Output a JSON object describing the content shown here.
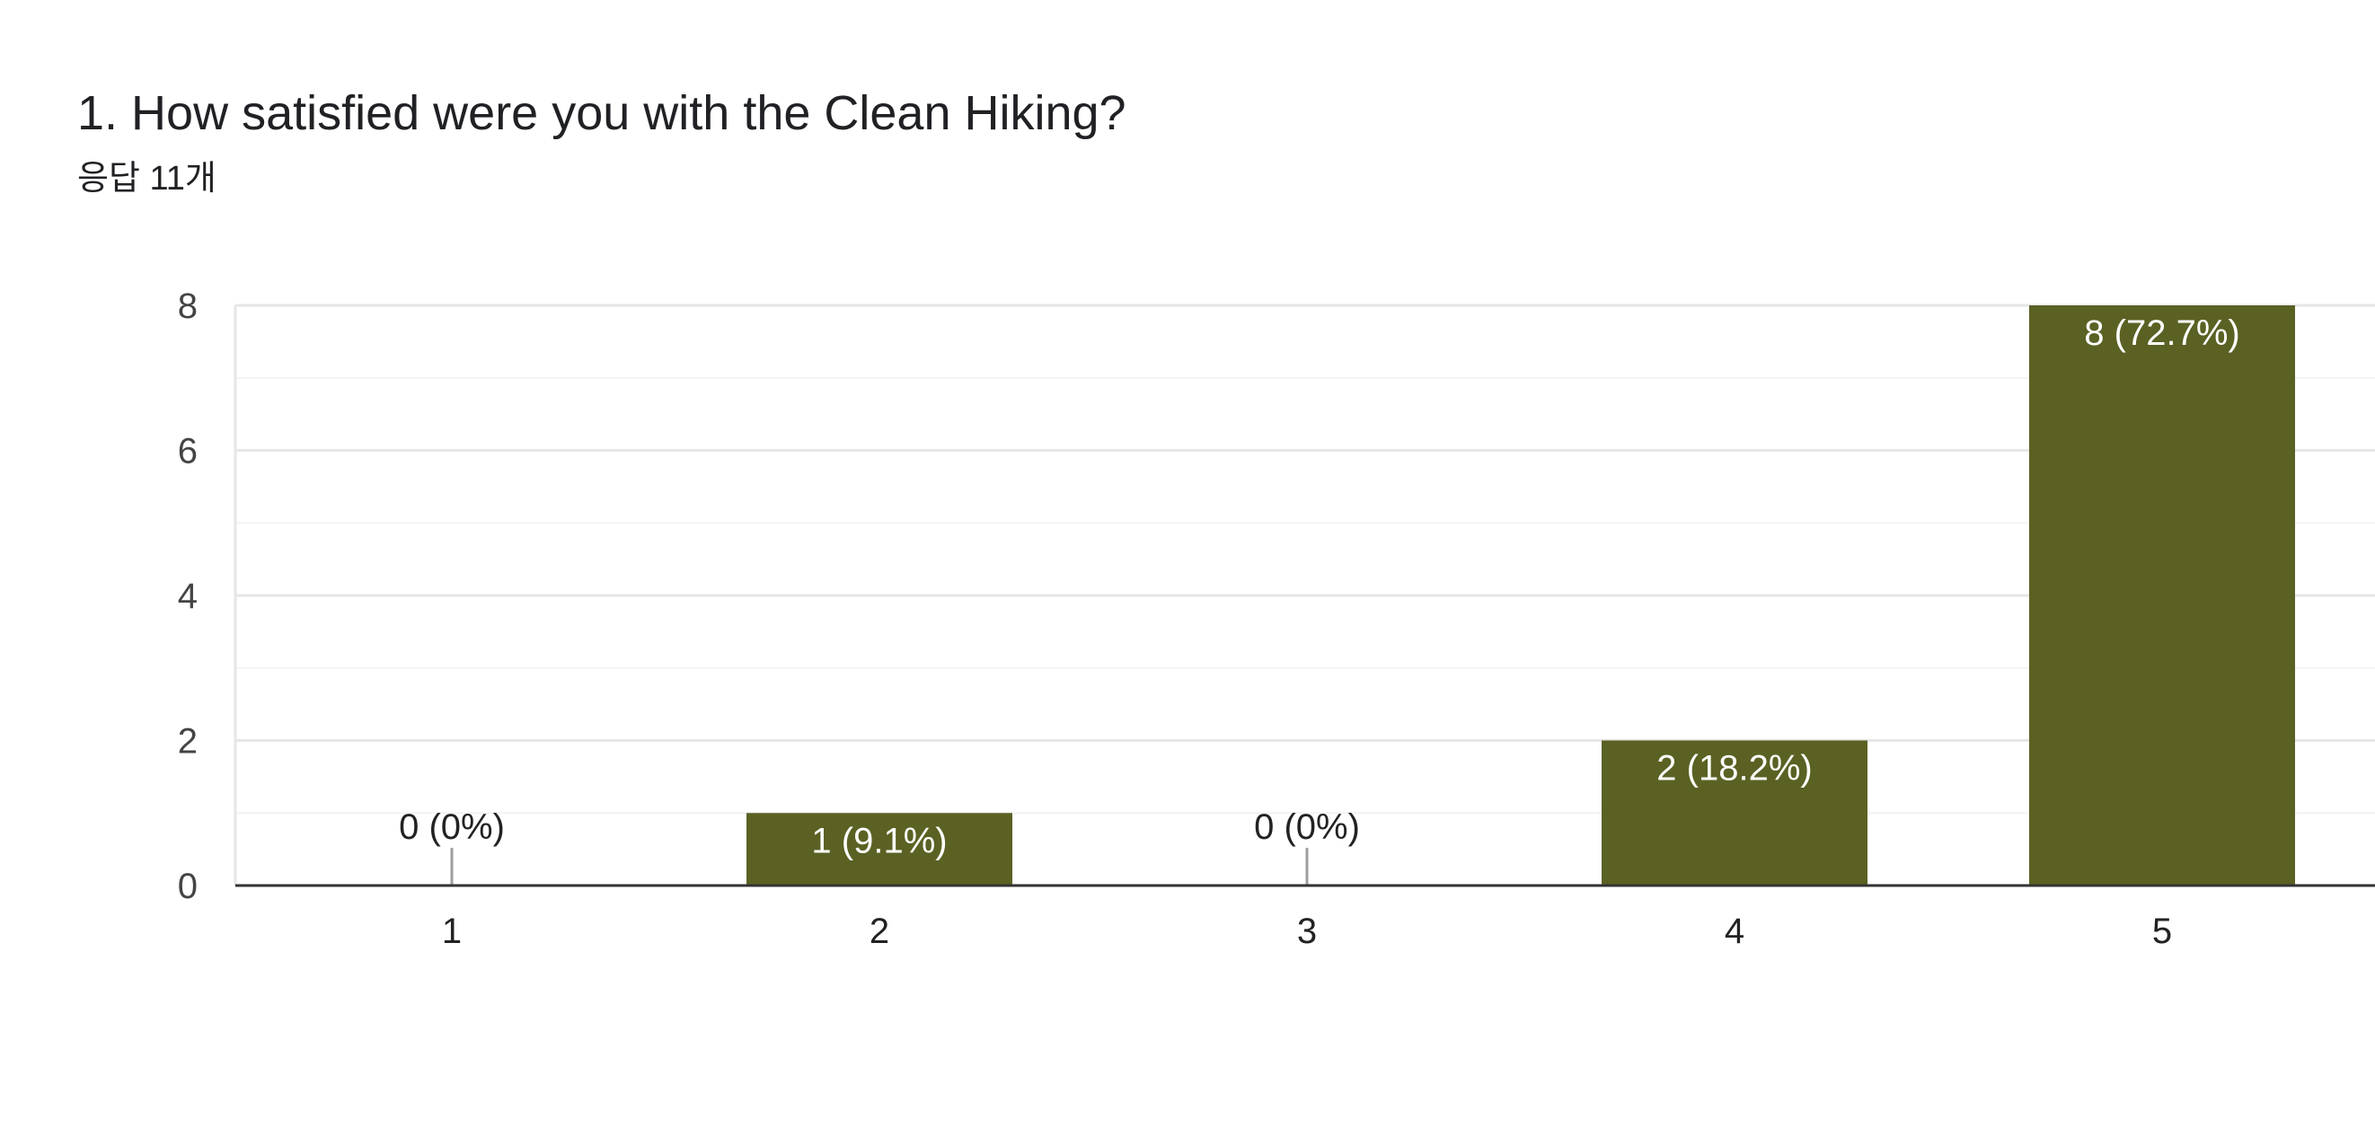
{
  "question": {
    "title": "1. How satisfied were you with the Clean Hiking?",
    "response_count": "응답 11개"
  },
  "colors": {
    "bar": "#5b6123",
    "grid_major": "#e6e6e6",
    "grid_minor": "#f3f3f3",
    "axis": "#333333",
    "zero_stub": "#9e9e9e"
  },
  "chart_data": {
    "type": "bar",
    "categories": [
      "1",
      "2",
      "3",
      "4",
      "5"
    ],
    "values": [
      0,
      1,
      0,
      2,
      8
    ],
    "data_labels": [
      "0 (0%)",
      "1 (9.1%)",
      "0 (0%)",
      "2 (18.2%)",
      "8 (72.7%)"
    ],
    "yticks": [
      "0",
      "2",
      "4",
      "6",
      "8"
    ],
    "ylim": [
      0,
      8
    ],
    "grid": true,
    "legend": "none"
  }
}
